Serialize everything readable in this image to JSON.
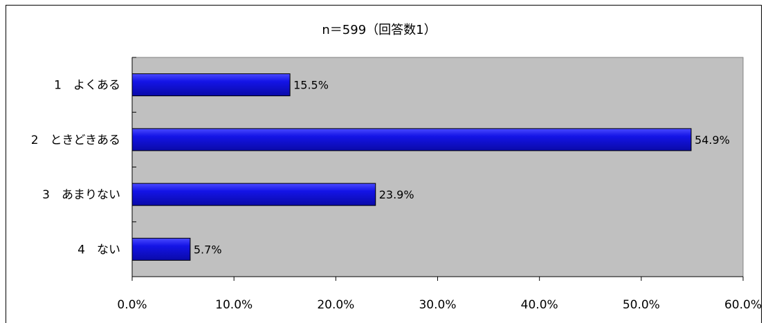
{
  "chart_data": {
    "type": "bar",
    "orientation": "horizontal",
    "title": "n＝599（回答数1）",
    "categories": [
      "1　よくある",
      "2　ときどきある",
      "3　あまりない",
      "4　ない"
    ],
    "values": [
      15.5,
      54.9,
      23.9,
      5.7
    ],
    "data_labels": [
      "15.5%",
      "54.9%",
      "23.9%",
      "5.7%"
    ],
    "xlim": [
      0,
      60
    ],
    "x_ticks": [
      0,
      10,
      20,
      30,
      40,
      50,
      60
    ],
    "x_tick_labels": [
      "0.0%",
      "10.0%",
      "20.0%",
      "30.0%",
      "40.0%",
      "50.0%",
      "60.0%"
    ],
    "xlabel": "",
    "ylabel": "",
    "grid": false,
    "legend": "none",
    "colors": {
      "bar_fill": "#1414e6",
      "bar_highlight": "#4a4aff",
      "bar_stroke": "#000000",
      "plot_background": "#c0c0c0",
      "frame_stroke": "#000000"
    }
  }
}
